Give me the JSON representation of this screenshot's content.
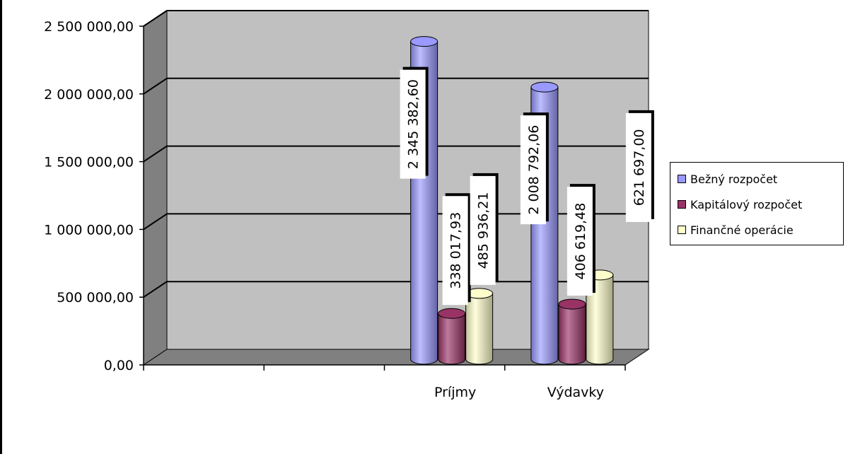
{
  "chart_data": {
    "type": "bar",
    "style": "3d-cylinder",
    "categories": [
      "",
      "",
      "Príjmy",
      "Výdavky"
    ],
    "series": [
      {
        "name": "Bežný rozpočet",
        "color": "#9999ff",
        "values": [
          null,
          null,
          2345382.6,
          2008792.06
        ],
        "labels": [
          "",
          "",
          "2 345 382,60",
          "2 008 792,06"
        ]
      },
      {
        "name": "Kapitálový rozpočet",
        "color": "#993366",
        "values": [
          null,
          null,
          338017.93,
          406619.48
        ],
        "labels": [
          "",
          "",
          "338 017,93",
          "406 619,48"
        ]
      },
      {
        "name": "Finančné operácie",
        "color": "#ffffcc",
        "values": [
          null,
          null,
          485936.21,
          621697.0
        ],
        "labels": [
          "",
          "",
          "485 936,21",
          "621 697,00"
        ]
      }
    ],
    "y_ticks": [
      "0,00",
      "500 000,00",
      "1 000 000,00",
      "1 500 000,00",
      "2 000 000,00",
      "2 500 000,00"
    ],
    "ylim": [
      0,
      2500000
    ],
    "grid": true,
    "legend_position": "right",
    "wall_color": "#c0c0c0",
    "floor_color": "#808080"
  }
}
